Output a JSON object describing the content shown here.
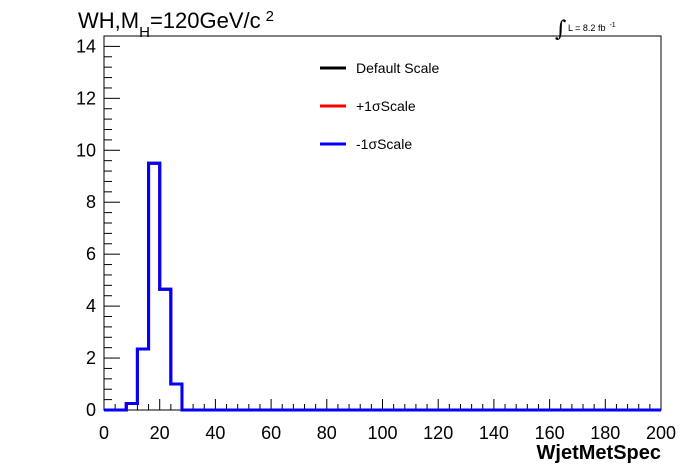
{
  "title": {
    "main": "WH,M",
    "sub": "H",
    "rest": "=120GeV/c",
    "sup": "2"
  },
  "lumi": {
    "integral": "∫",
    "text": "L = 8.2 fb",
    "sup": "-1"
  },
  "chart_data": {
    "type": "line",
    "xlabel": "WjetMetSpec",
    "ylabel": "",
    "xlim": [
      0,
      200
    ],
    "ylim": [
      0,
      14.4
    ],
    "x_ticks": [
      0,
      20,
      40,
      60,
      80,
      100,
      120,
      140,
      160,
      180,
      200
    ],
    "y_ticks": [
      0,
      2,
      4,
      6,
      8,
      10,
      12,
      14
    ],
    "bin_edges": [
      0,
      4,
      8,
      12,
      16,
      20,
      24,
      28,
      32,
      36,
      40,
      44,
      48,
      52,
      56,
      60,
      64,
      68,
      72,
      76,
      80,
      84,
      88,
      92,
      96,
      100,
      104,
      108,
      112,
      116,
      120,
      124,
      128,
      132,
      136,
      140,
      144,
      148,
      152,
      156,
      160,
      164,
      168,
      172,
      176,
      180,
      184,
      188,
      192,
      196,
      200
    ],
    "legend_position": "top-center",
    "series": [
      {
        "name": "Default Scale",
        "color": "#000000",
        "values": [
          0,
          0,
          0.25,
          2.35,
          9.5,
          4.65,
          1.0,
          0,
          0,
          0,
          0,
          0,
          0,
          0,
          0,
          0,
          0,
          0,
          0,
          0,
          0,
          0,
          0,
          0,
          0,
          0,
          0,
          0,
          0,
          0,
          0,
          0,
          0,
          0,
          0,
          0,
          0,
          0,
          0,
          0,
          0,
          0,
          0,
          0,
          0,
          0,
          0,
          0,
          0,
          0
        ]
      },
      {
        "name": "+1σScale",
        "color": "#ff0000",
        "values": [
          0,
          0,
          0.25,
          2.35,
          9.5,
          4.65,
          1.0,
          0,
          0,
          0,
          0,
          0,
          0,
          0,
          0,
          0,
          0,
          0,
          0,
          0,
          0,
          0,
          0,
          0,
          0,
          0,
          0,
          0,
          0,
          0,
          0,
          0,
          0,
          0,
          0,
          0,
          0,
          0,
          0,
          0,
          0,
          0,
          0,
          0,
          0,
          0,
          0,
          0,
          0,
          0
        ]
      },
      {
        "name": "-1σScale",
        "color": "#0000ff",
        "values": [
          0,
          0,
          0.25,
          2.35,
          9.5,
          4.65,
          1.0,
          0,
          0,
          0,
          0,
          0,
          0,
          0,
          0,
          0,
          0,
          0,
          0,
          0,
          0,
          0,
          0,
          0,
          0,
          0,
          0,
          0,
          0,
          0,
          0,
          0,
          0,
          0,
          0,
          0,
          0,
          0,
          0,
          0,
          0,
          0,
          0,
          0,
          0,
          0,
          0,
          0,
          0,
          0
        ]
      }
    ]
  }
}
